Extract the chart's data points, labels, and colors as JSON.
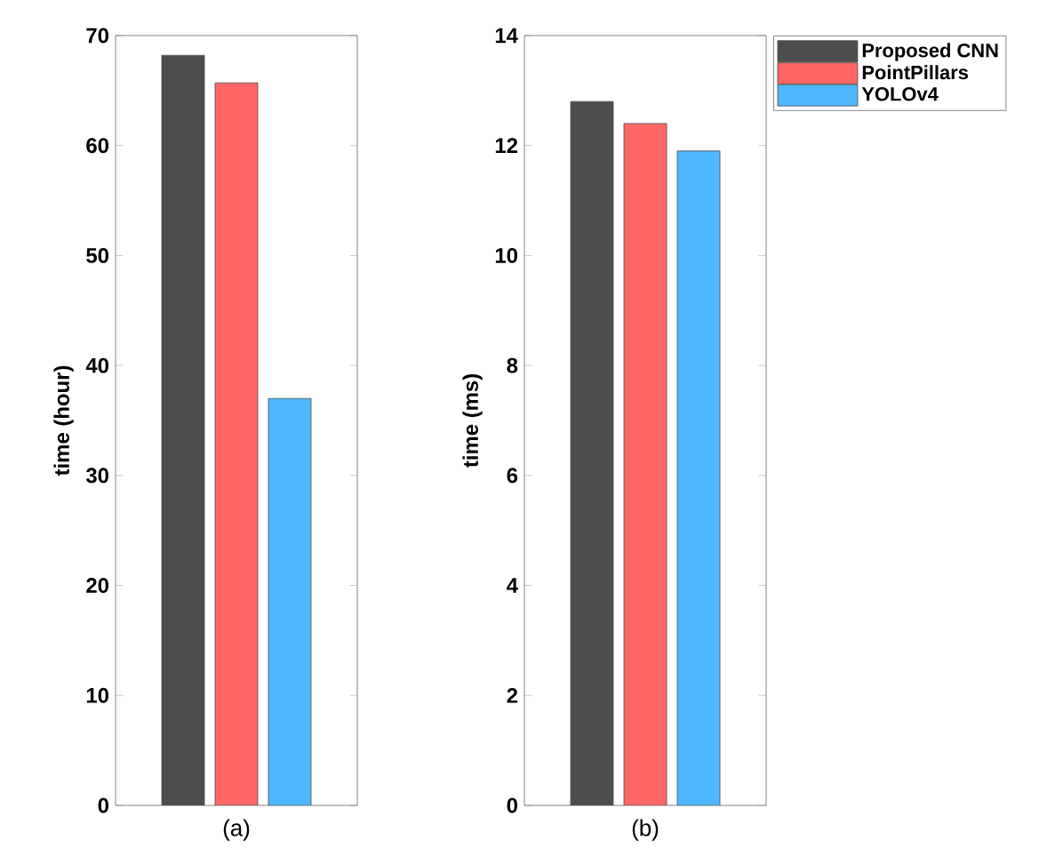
{
  "chart_data": [
    {
      "type": "bar",
      "categories": [
        "(a)"
      ],
      "ylabel": "time (hour)",
      "ylim": [
        0,
        70
      ],
      "yticks": [
        0,
        10,
        20,
        30,
        40,
        50,
        60,
        70
      ],
      "legend": false,
      "series": [
        {
          "color": "#4d4d4d",
          "values": [
            68.2
          ]
        },
        {
          "color": "#ff6666",
          "values": [
            65.7
          ]
        },
        {
          "color": "#4db8ff",
          "values": [
            37.0
          ]
        }
      ]
    },
    {
      "type": "bar",
      "categories": [
        "(b)"
      ],
      "ylabel": "time (ms)",
      "ylim": [
        0,
        14
      ],
      "yticks": [
        0,
        2,
        4,
        6,
        8,
        10,
        12,
        14
      ],
      "legend": "top right",
      "series": [
        {
          "name": "Proposed CNN",
          "color": "#4d4d4d",
          "values": [
            12.8
          ]
        },
        {
          "name": "PointPillars",
          "color": "#ff6666",
          "values": [
            12.4
          ]
        },
        {
          "name": "YOLOv4",
          "color": "#4db8ff",
          "values": [
            11.9
          ]
        }
      ]
    }
  ]
}
